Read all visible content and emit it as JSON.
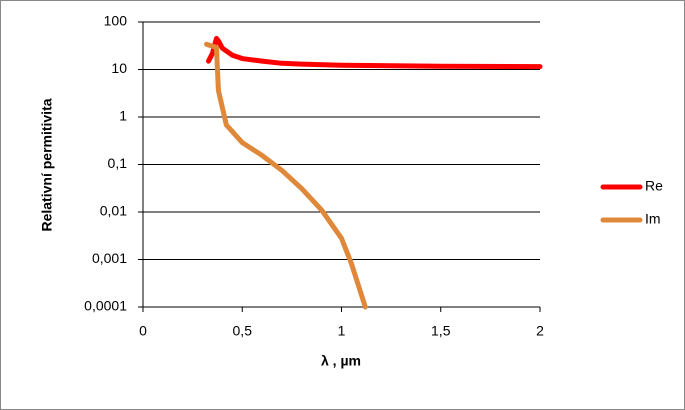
{
  "chart_data": {
    "type": "line",
    "ylabel": "Relativní permitivita",
    "xlabel": "λ , µm",
    "yscale": "log",
    "grid": true,
    "legend": "right",
    "xlim": [
      0,
      2
    ],
    "xticks": [
      0,
      {
        "value": 0.5,
        "label": "0,5"
      },
      1,
      {
        "value": 1.5,
        "label": "1,5"
      },
      2
    ],
    "ylim": [
      0.0001,
      100
    ],
    "yticks": [
      100,
      10,
      1,
      {
        "value": 0.1,
        "label": "0,1"
      },
      {
        "value": 0.01,
        "label": "0,01"
      },
      {
        "value": 0.001,
        "label": "0,001"
      },
      {
        "value": 0.0001,
        "label": "0,0001"
      }
    ],
    "series": [
      {
        "name": "Re",
        "color": "#ff0000",
        "x": [
          0.33,
          0.35,
          0.37,
          0.38,
          0.4,
          0.45,
          0.5,
          0.6,
          0.7,
          0.8,
          1.0,
          1.5,
          2.0
        ],
        "values": [
          15,
          22,
          45,
          40,
          28,
          20,
          17,
          15,
          13.5,
          13,
          12.3,
          11.7,
          11.5
        ]
      },
      {
        "name": "Im",
        "color": "#e0883a",
        "x": [
          0.32,
          0.37,
          0.38,
          0.42,
          0.5,
          0.6,
          0.7,
          0.8,
          0.9,
          1.0,
          1.05,
          1.12
        ],
        "values": [
          34,
          29,
          3.6,
          0.68,
          0.29,
          0.155,
          0.075,
          0.031,
          0.011,
          0.0028,
          0.00082,
          0.0001
        ]
      }
    ]
  }
}
